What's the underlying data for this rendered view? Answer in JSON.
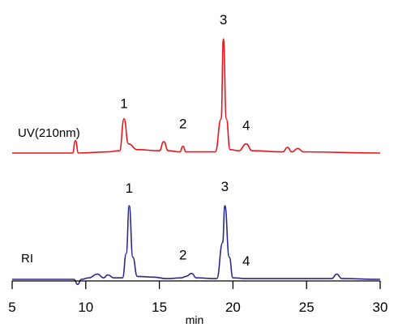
{
  "chart_data": {
    "type": "line",
    "xlabel": "min",
    "xlim": [
      5,
      30
    ],
    "x_ticks": [
      5,
      10,
      15,
      20,
      25,
      30
    ],
    "x_tick_labels": [
      "5",
      "10",
      "15",
      "20",
      "25",
      "30"
    ],
    "series": [
      {
        "name": "UV(210nm)",
        "color": "#e8141c",
        "points": [
          [
            5,
            0
          ],
          [
            9.1,
            0
          ],
          [
            9.3,
            0.11
          ],
          [
            9.5,
            0
          ],
          [
            11.5,
            0.01
          ],
          [
            12.3,
            0.02
          ],
          [
            12.6,
            0.3
          ],
          [
            12.9,
            0.08
          ],
          [
            13.5,
            0.03
          ],
          [
            15.0,
            0.02
          ],
          [
            15.3,
            0.1
          ],
          [
            15.6,
            0.02
          ],
          [
            16.4,
            0.01
          ],
          [
            16.6,
            0.06
          ],
          [
            16.8,
            0.01
          ],
          [
            18.8,
            0.01
          ],
          [
            19.2,
            0.3
          ],
          [
            19.35,
            1.0
          ],
          [
            19.55,
            0.3
          ],
          [
            19.8,
            0.03
          ],
          [
            20.4,
            0.02
          ],
          [
            20.9,
            0.08
          ],
          [
            21.3,
            0.02
          ],
          [
            23.4,
            0.01
          ],
          [
            23.7,
            0.05
          ],
          [
            24.0,
            0.01
          ],
          [
            24.4,
            0.04
          ],
          [
            24.8,
            0.01
          ],
          [
            30,
            0
          ]
        ],
        "peak_labels": [
          {
            "label": "1",
            "x": 12.6
          },
          {
            "label": "2",
            "x": 16.6
          },
          {
            "label": "3",
            "x": 19.35
          },
          {
            "label": "4",
            "x": 20.9
          }
        ]
      },
      {
        "name": "RI",
        "color": "#2b2a8c",
        "points": [
          [
            5,
            0
          ],
          [
            9.2,
            0
          ],
          [
            9.45,
            -0.07
          ],
          [
            9.7,
            0
          ],
          [
            10.2,
            0.02
          ],
          [
            10.8,
            0.07
          ],
          [
            11.2,
            0.02
          ],
          [
            11.5,
            0.06
          ],
          [
            11.9,
            0.02
          ],
          [
            12.5,
            0.02
          ],
          [
            12.75,
            0.35
          ],
          [
            12.95,
            1.0
          ],
          [
            13.2,
            0.3
          ],
          [
            13.5,
            0.04
          ],
          [
            14.6,
            0.03
          ],
          [
            15.5,
            0.01
          ],
          [
            16.5,
            0.02
          ],
          [
            16.8,
            0.04
          ],
          [
            17.2,
            0.08
          ],
          [
            17.5,
            0.02
          ],
          [
            18.9,
            0.01
          ],
          [
            19.3,
            0.5
          ],
          [
            19.45,
            1.0
          ],
          [
            19.75,
            0.3
          ],
          [
            20.0,
            0.02
          ],
          [
            21.0,
            0.01
          ],
          [
            22.5,
            0.01
          ],
          [
            26.7,
            0.01
          ],
          [
            27.05,
            0.07
          ],
          [
            27.4,
            0.01
          ],
          [
            30,
            0
          ]
        ],
        "peak_labels": [
          {
            "label": "1",
            "x": 12.95
          },
          {
            "label": "2",
            "x": 16.6
          },
          {
            "label": "3",
            "x": 19.45
          },
          {
            "label": "4",
            "x": 20.9
          }
        ]
      }
    ]
  }
}
